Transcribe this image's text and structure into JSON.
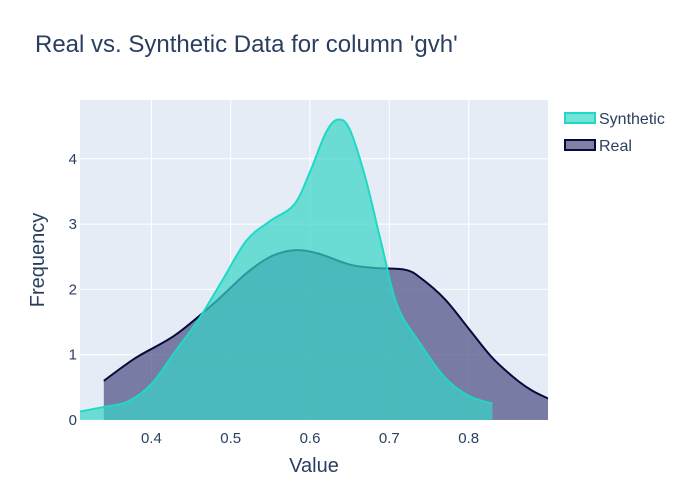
{
  "chart_data": {
    "type": "area",
    "title": "Real vs. Synthetic Data for column 'gvh'",
    "xlabel": "Value",
    "ylabel": "Frequency",
    "xlim": [
      0.31,
      0.9
    ],
    "ylim": [
      0,
      4.9
    ],
    "xticks": [
      0.4,
      0.5,
      0.6,
      0.7,
      0.8
    ],
    "yticks": [
      0,
      1,
      2,
      3,
      4
    ],
    "grid": true,
    "legend_position": "top-right",
    "series": [
      {
        "name": "Real",
        "line_color": "#0a0a3a",
        "fill_color": "#535687",
        "fill_opacity": 0.75,
        "x": [
          0.34,
          0.38,
          0.43,
          0.48,
          0.52,
          0.55,
          0.58,
          0.61,
          0.65,
          0.68,
          0.72,
          0.74,
          0.77,
          0.8,
          0.83,
          0.86,
          0.88,
          0.9
        ],
        "y": [
          0.6,
          0.95,
          1.3,
          1.8,
          2.25,
          2.5,
          2.6,
          2.55,
          2.38,
          2.33,
          2.3,
          2.17,
          1.85,
          1.4,
          0.95,
          0.62,
          0.45,
          0.33
        ]
      },
      {
        "name": "Synthetic",
        "line_color": "#1fd9c5",
        "fill_color": "#38d6c6",
        "fill_opacity": 0.7,
        "x": [
          0.31,
          0.34,
          0.37,
          0.4,
          0.43,
          0.46,
          0.49,
          0.52,
          0.55,
          0.58,
          0.6,
          0.62,
          0.635,
          0.65,
          0.67,
          0.69,
          0.71,
          0.74,
          0.77,
          0.8,
          0.83
        ],
        "y": [
          0.13,
          0.2,
          0.28,
          0.55,
          1.05,
          1.55,
          2.15,
          2.75,
          3.05,
          3.3,
          3.8,
          4.4,
          4.6,
          4.45,
          3.7,
          2.7,
          1.75,
          1.15,
          0.65,
          0.37,
          0.25
        ]
      }
    ],
    "legend": [
      "Synthetic",
      "Real"
    ]
  }
}
